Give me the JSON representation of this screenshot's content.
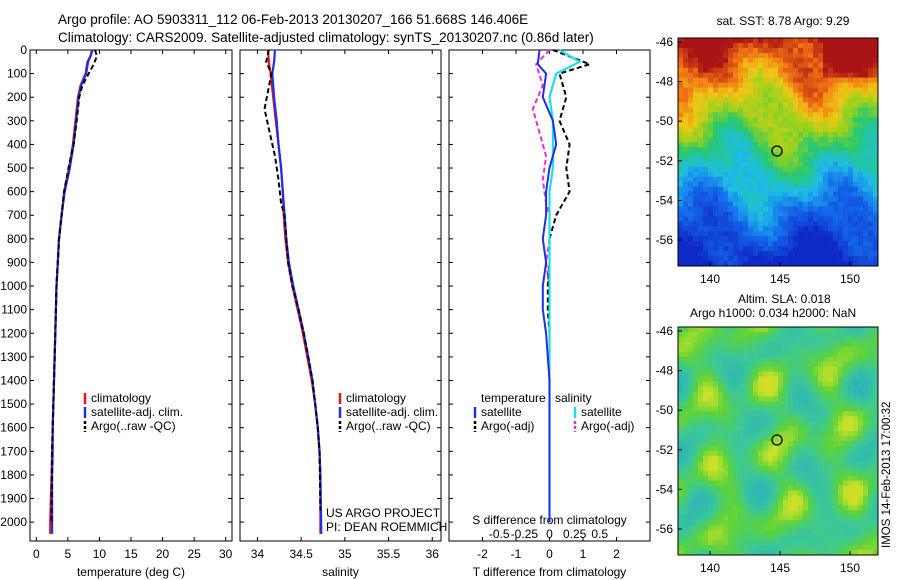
{
  "header": {
    "line1": "Argo profile: AO 5903311_112 06-Feb-2013 20130207_166 51.668S 146.406E",
    "line2": "Climatology: CARS2009. Satellite-adjusted climatology: synTS_20130207.nc (0.86d later)"
  },
  "depth_ticks": [
    0,
    100,
    200,
    300,
    400,
    500,
    600,
    700,
    800,
    900,
    1000,
    1100,
    1200,
    1300,
    1400,
    1500,
    1600,
    1700,
    1800,
    1900,
    2000
  ],
  "panels": {
    "temperature": {
      "xlabel": "temperature (deg C)",
      "xlim": [
        -1,
        31
      ],
      "ticks": [
        0,
        5,
        10,
        15,
        20,
        25,
        30
      ],
      "legend": [
        "climatology",
        "satellite-adj. clim.",
        "Argo(..raw -QC)"
      ]
    },
    "salinity": {
      "xlabel": "salinity",
      "xlim": [
        33.8,
        36.1
      ],
      "ticks": [
        34,
        34.5,
        35,
        35.5,
        36
      ],
      "tick_labels": [
        "34",
        "34.5",
        "35",
        "35.5",
        "36"
      ],
      "legend": [
        "climatology",
        "satellite-adj. clim.",
        "Argo(..raw -QC)"
      ],
      "credit": [
        "US ARGO PROJECT",
        "PI: DEAN ROEMMICH"
      ]
    },
    "difference": {
      "xlabel": "T difference from climatology",
      "top_label": "S difference from climatology",
      "xlim": [
        -3,
        3
      ],
      "t_ticks": [
        -2,
        -1,
        0,
        1,
        2
      ],
      "s_ticks": [
        "-0.5",
        "-0.25",
        "0",
        "0.25",
        "0.5"
      ],
      "legend_t_title": "temperature",
      "legend_s_title": "salinity",
      "legend_t": [
        "satellite",
        "Argo(-adj)"
      ],
      "legend_s": [
        "satellite",
        "Argo(-adj)"
      ]
    }
  },
  "maps": {
    "sst": {
      "title": "sat. SST: 8.78 Argo: 9.29",
      "yticks": [
        "-46",
        "-48",
        "-50",
        "-52",
        "-54",
        "-56"
      ],
      "xticks": [
        "140",
        "145",
        "150"
      ]
    },
    "sla": {
      "title1": "Altim. SLA: 0.018",
      "title2": "Argo h1000: 0.034 h2000: NaN",
      "yticks": [
        "-46",
        "-48",
        "-50",
        "-52",
        "-54",
        "-56"
      ],
      "xticks": [
        "140",
        "145",
        "150"
      ]
    },
    "stamp": "IMOS 14-Feb-2013 17:00:32"
  },
  "colors": {
    "climatology": "#e8141e",
    "satellite": "#1f2ee8",
    "argo": "#000000",
    "sat_salinity": "#22dde8",
    "argo_salinity": "#e82ed8"
  },
  "chart_data": [
    {
      "type": "line",
      "title": "",
      "xlabel": "temperature (deg C)",
      "ylabel": "",
      "xlim": [
        -1,
        31
      ],
      "ylim": [
        2080,
        0
      ],
      "series": [
        {
          "name": "climatology",
          "x": [
            8.8,
            8.6,
            8.1,
            7.8,
            7.0,
            6.6,
            6.2,
            5.8,
            5.2,
            4.4,
            4.0,
            3.6,
            3.4,
            3.2,
            3.0,
            2.8,
            2.6,
            2.5,
            2.4,
            2.3,
            2.2,
            2.2
          ],
          "y": [
            0,
            25,
            50,
            100,
            150,
            200,
            300,
            400,
            500,
            600,
            700,
            800,
            900,
            1000,
            1200,
            1400,
            1600,
            1700,
            1800,
            1900,
            2000,
            2050
          ]
        },
        {
          "name": "satellite-adj. clim.",
          "x": [
            8.9,
            8.6,
            8.2,
            7.9,
            7.1,
            6.7,
            6.3,
            5.9,
            5.3,
            4.5,
            4.0,
            3.6,
            3.4,
            3.2,
            3.0,
            2.8,
            2.6,
            2.6,
            2.5,
            2.5,
            2.5,
            2.5
          ],
          "y": [
            0,
            25,
            50,
            100,
            150,
            200,
            300,
            400,
            500,
            600,
            700,
            800,
            900,
            1000,
            1200,
            1400,
            1600,
            1700,
            1800,
            1900,
            2000,
            2050
          ]
        },
        {
          "name": "Argo(..raw -QC)",
          "x": [
            9.3,
            9.6,
            9.1,
            8.3,
            7.3,
            6.8,
            6.4,
            5.9,
            5.1,
            4.4,
            4.0,
            3.6,
            3.4,
            3.2,
            3.0,
            2.8,
            2.6,
            2.5,
            2.5,
            2.4,
            2.4
          ],
          "y": [
            0,
            25,
            60,
            100,
            150,
            200,
            300,
            400,
            500,
            600,
            700,
            800,
            900,
            1000,
            1200,
            1400,
            1600,
            1700,
            1800,
            1900,
            2000
          ]
        }
      ]
    },
    {
      "type": "line",
      "title": "",
      "xlabel": "salinity",
      "ylabel": "",
      "xlim": [
        33.8,
        36.1
      ],
      "ylim": [
        2080,
        0
      ],
      "series": [
        {
          "name": "climatology",
          "x": [
            34.12,
            34.13,
            34.15,
            34.18,
            34.21,
            34.24,
            34.27,
            34.29,
            34.3,
            34.32,
            34.35,
            34.4,
            34.46,
            34.52,
            34.57,
            34.62,
            34.66,
            34.69,
            34.71,
            34.72,
            34.72
          ],
          "y": [
            0,
            50,
            100,
            200,
            300,
            400,
            500,
            600,
            700,
            800,
            900,
            1000,
            1100,
            1200,
            1300,
            1400,
            1500,
            1600,
            1700,
            1800,
            2050
          ]
        },
        {
          "name": "satellite-adj. clim.",
          "x": [
            34.2,
            34.19,
            34.17,
            34.19,
            34.22,
            34.24,
            34.27,
            34.29,
            34.31,
            34.33,
            34.36,
            34.41,
            34.47,
            34.53,
            34.58,
            34.63,
            34.66,
            34.69,
            34.71,
            34.72,
            34.73
          ],
          "y": [
            0,
            50,
            100,
            200,
            300,
            400,
            500,
            600,
            700,
            800,
            900,
            1000,
            1100,
            1200,
            1300,
            1400,
            1500,
            1600,
            1700,
            1800,
            2050
          ]
        },
        {
          "name": "Argo(..raw -QC)",
          "x": [
            34.13,
            34.1,
            34.16,
            34.08,
            34.14,
            34.2,
            34.24,
            34.27,
            34.31,
            34.33,
            34.35,
            34.4,
            34.47,
            34.53,
            34.58,
            34.63,
            34.66,
            34.69,
            34.71,
            34.72
          ],
          "y": [
            0,
            50,
            100,
            250,
            350,
            450,
            550,
            650,
            700,
            800,
            900,
            1000,
            1100,
            1200,
            1300,
            1400,
            1500,
            1600,
            1700,
            1950
          ]
        }
      ]
    },
    {
      "type": "line",
      "title": "",
      "xlabel": "T difference from climatology",
      "ylabel": "",
      "xlim": [
        -3,
        3
      ],
      "ylim": [
        2080,
        0
      ],
      "series": [
        {
          "name": "temperature satellite",
          "x": [
            -0.3,
            -0.35,
            -0.1,
            -0.2,
            0.1,
            0.2,
            0.0,
            -0.1,
            -0.1,
            -0.2,
            -0.1,
            -0.2,
            -0.2,
            -0.1,
            -0.05,
            0.0,
            0.0,
            0.0,
            0.0,
            0.0,
            0.0
          ],
          "y": [
            0,
            60,
            100,
            200,
            300,
            400,
            500,
            600,
            700,
            800,
            900,
            1000,
            1100,
            1200,
            1300,
            1400,
            1500,
            1600,
            1700,
            1900,
            2000
          ]
        },
        {
          "name": "temperature Argo(-adj)",
          "x": [
            0.1,
            1.2,
            0.3,
            0.5,
            0.3,
            0.6,
            0.5,
            0.6,
            0.2,
            0.0,
            0.0,
            -0.05,
            -0.05,
            0.0,
            0.0,
            0.0,
            0.0,
            0.0,
            0.0,
            0.0
          ],
          "y": [
            0,
            60,
            100,
            200,
            300,
            400,
            500,
            600,
            700,
            800,
            900,
            1000,
            1100,
            1200,
            1300,
            1400,
            1500,
            1600,
            1700,
            1950
          ]
        },
        {
          "name": "salinity satellite",
          "x": [
            0.3,
            0.9,
            0.2,
            0.0,
            0.1,
            0.1,
            0.1,
            0.0,
            0.0,
            0.0,
            0.0,
            0.0,
            0.0,
            0.0,
            0.0,
            0.0,
            0.0,
            0.0,
            0.0
          ],
          "y": [
            0,
            50,
            100,
            200,
            300,
            400,
            500,
            600,
            700,
            800,
            900,
            1000,
            1200,
            1400,
            1500,
            1600,
            1700,
            1800,
            2000
          ]
        },
        {
          "name": "salinity Argo(-adj)",
          "x": [
            0.0,
            -0.4,
            -0.2,
            -0.5,
            -0.3,
            -0.1,
            -0.2,
            -0.1,
            0.0,
            0.0,
            -0.1,
            0.0,
            0.0,
            0.0,
            0.0,
            0.0,
            0.0,
            0.0,
            0.0
          ],
          "y": [
            0,
            60,
            150,
            250,
            350,
            450,
            550,
            650,
            700,
            800,
            900,
            1000,
            1100,
            1200,
            1400,
            1500,
            1600,
            1800,
            1950
          ]
        }
      ]
    }
  ]
}
